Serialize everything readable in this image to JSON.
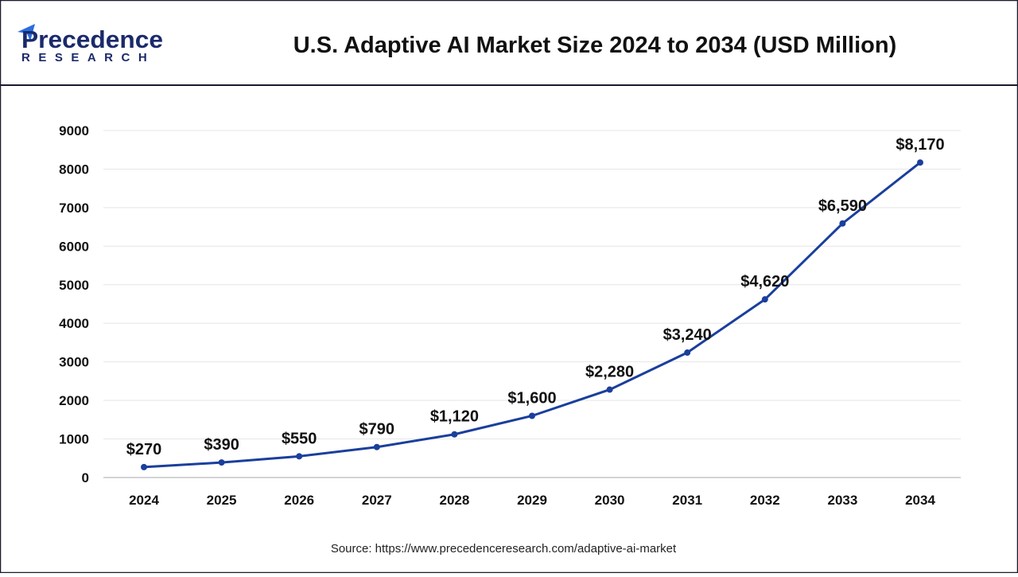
{
  "logo": {
    "line1": "Precedence",
    "line2": "RESEARCH"
  },
  "header": {
    "title": "U.S. Adaptive AI Market Size 2024 to 2034 (USD Million)"
  },
  "source": "Source: https://www.precedenceresearch.com/adaptive-ai-market",
  "colors": {
    "line": "#1a3f9c",
    "grid": "#e6e6e6",
    "border": "#1a1a2e"
  },
  "chart_data": {
    "type": "line",
    "title": "U.S. Adaptive AI Market Size 2024 to 2034 (USD Million)",
    "xlabel": "",
    "ylabel": "",
    "categories": [
      "2024",
      "2025",
      "2026",
      "2027",
      "2028",
      "2029",
      "2030",
      "2031",
      "2032",
      "2033",
      "2034"
    ],
    "values": [
      270,
      390,
      550,
      790,
      1120,
      1600,
      2280,
      3240,
      4620,
      6590,
      8170
    ],
    "data_labels": [
      "$270",
      "$390",
      "$550",
      "$790",
      "$1,120",
      "$1,600",
      "$2,280",
      "$3,240",
      "$4,620",
      "$6,590",
      "$8,170"
    ],
    "yticks": [
      "0",
      "1000",
      "2000",
      "3000",
      "4000",
      "5000",
      "6000",
      "7000",
      "8000",
      "9000"
    ],
    "ylim": [
      0,
      9000
    ],
    "grid": true,
    "legend": "none"
  }
}
